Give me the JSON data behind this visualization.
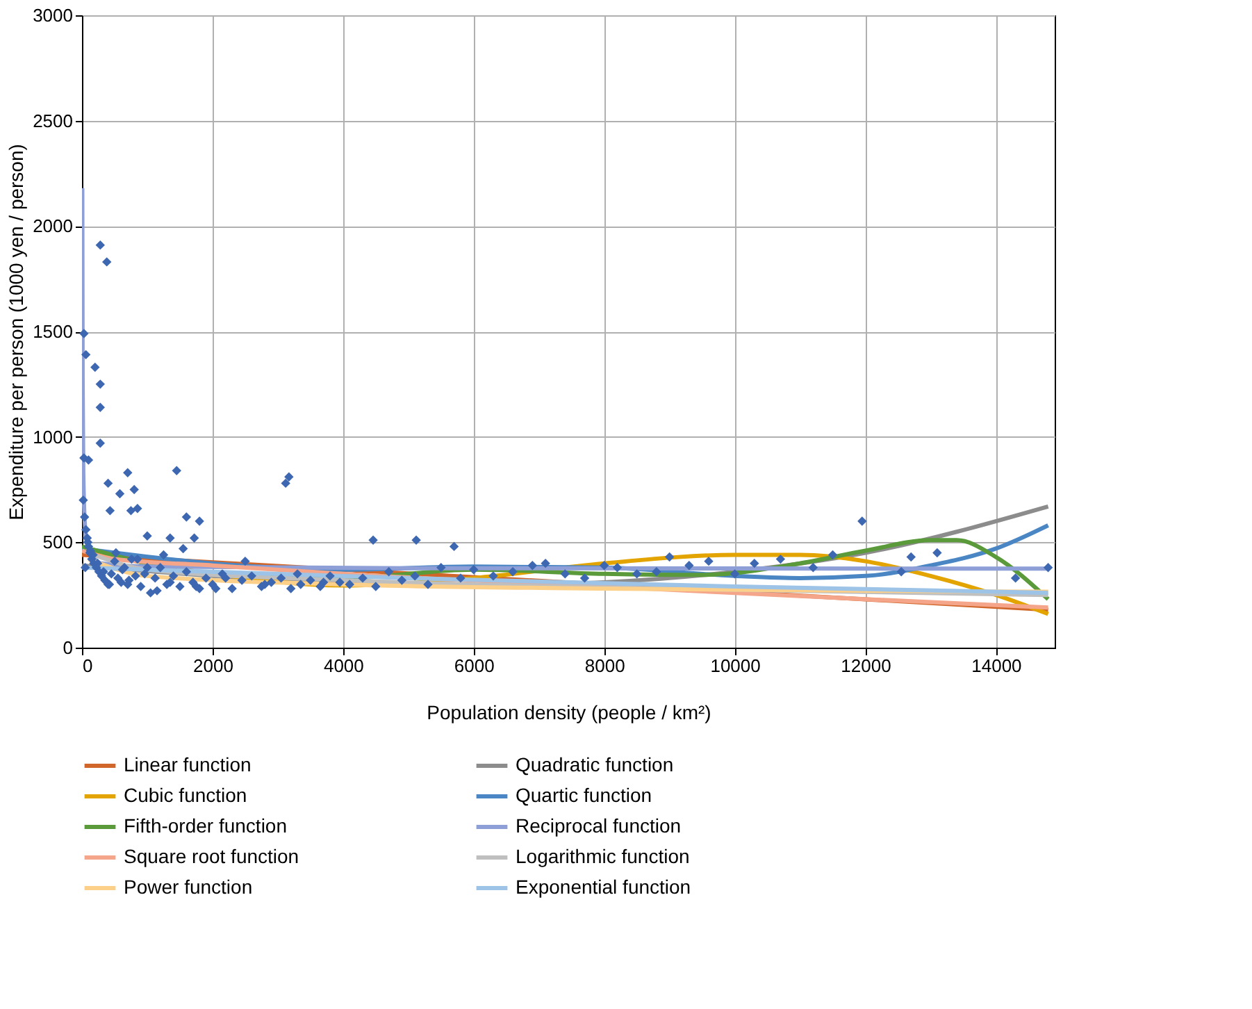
{
  "chart_data": {
    "type": "scatter",
    "xlabel": "Population density (people / km²)",
    "ylabel": "Expenditure per person (1000 yen / person)",
    "xlim": [
      0,
      14900
    ],
    "xticks": [
      0,
      2000,
      4000,
      6000,
      8000,
      10000,
      12000,
      14000
    ],
    "ylim": [
      0,
      3000
    ],
    "yticks": [
      0,
      500,
      1000,
      1500,
      2000,
      2500,
      3000
    ],
    "grid": true,
    "legend": "bottom",
    "series": [
      {
        "type": "line",
        "name": "Linear function",
        "color": "#d0662a",
        "x": [
          0,
          14800
        ],
        "values": [
          440,
          180
        ]
      },
      {
        "type": "line",
        "name": "Quadratic function",
        "color": "#8c8c8c",
        "x": [
          0,
          2000,
          4000,
          6000,
          8000,
          10000,
          12000,
          14800
        ],
        "values": [
          390,
          340,
          305,
          295,
          310,
          360,
          450,
          670
        ]
      },
      {
        "type": "line",
        "name": "Cubic function",
        "color": "#e3a400",
        "x": [
          0,
          2000,
          4000,
          6000,
          8000,
          10000,
          11000,
          12000,
          13000,
          14000,
          14800
        ],
        "values": [
          460,
          350,
          295,
          330,
          400,
          440,
          440,
          410,
          340,
          250,
          160
        ]
      },
      {
        "type": "line",
        "name": "Quartic function",
        "color": "#4a86c4",
        "x": [
          0,
          2000,
          4000,
          6000,
          8000,
          10000,
          11000,
          12000,
          13000,
          14000,
          14800
        ],
        "values": [
          470,
          400,
          370,
          385,
          380,
          340,
          330,
          340,
          390,
          470,
          580
        ]
      },
      {
        "type": "line",
        "name": "Fifth-order function",
        "color": "#5a9a3a",
        "x": [
          0,
          2000,
          4000,
          6000,
          8000,
          9500,
          11000,
          12000,
          13000,
          13400,
          14000,
          14800
        ],
        "values": [
          480,
          350,
          330,
          370,
          350,
          345,
          400,
          460,
          510,
          510,
          430,
          230
        ]
      },
      {
        "type": "line",
        "name": "Reciprocal function",
        "color": "#8d9fd6",
        "x": [
          5,
          10,
          20,
          50,
          100,
          300,
          1000,
          5000,
          14800
        ],
        "values": [
          2180,
          1280,
          830,
          560,
          470,
          400,
          385,
          377,
          375
        ]
      },
      {
        "type": "line",
        "name": "Square root function",
        "color": "#f4a58a",
        "x": [
          0,
          500,
          2000,
          4000,
          8000,
          12000,
          14800
        ],
        "values": [
          460,
          420,
          390,
          350,
          290,
          230,
          190
        ]
      },
      {
        "type": "line",
        "name": "Logarithmic function",
        "color": "#bfbfbf",
        "x": [
          100,
          1000,
          4000,
          8000,
          14800
        ],
        "values": [
          450,
          370,
          320,
          285,
          250
        ]
      },
      {
        "type": "line",
        "name": "Power function",
        "color": "#fdd08a",
        "x": [
          100,
          1000,
          4000,
          8000,
          14800
        ],
        "values": [
          420,
          340,
          300,
          280,
          265
        ]
      },
      {
        "type": "line",
        "name": "Exponential function",
        "color": "#9dc3e6",
        "x": [
          0,
          5000,
          10000,
          14800
        ],
        "values": [
          380,
          330,
          290,
          260
        ]
      },
      {
        "color": "#3d67b1",
        "marker": "diamond",
        "x": [
          280,
          380,
          30,
          60,
          200,
          280,
          280,
          280,
          30,
          100,
          400,
          580,
          800,
          700,
          430,
          750,
          850,
          1450,
          1600,
          1800,
          1720,
          1350,
          3120,
          3170,
          1000,
          4460,
          5120,
          5700,
          11950,
          13100,
          14800,
          14300,
          12550,
          20,
          40,
          60,
          80,
          100,
          120,
          150,
          180,
          220,
          260,
          300,
          350,
          400,
          450,
          500,
          550,
          600,
          650,
          700,
          760,
          820,
          900,
          960,
          1050,
          1120,
          1200,
          1300,
          1400,
          1500,
          1600,
          1700,
          1800,
          1900,
          2000,
          2150,
          2300,
          2450,
          2600,
          2750,
          2900,
          3050,
          3200,
          3350,
          3500,
          3650,
          3800,
          3950,
          4100,
          4300,
          4500,
          4700,
          4900,
          5100,
          5300,
          5500,
          5800,
          6000,
          6300,
          6600,
          6900,
          7100,
          7400,
          7700,
          8000,
          8200,
          8500,
          8800,
          9000,
          9300,
          9600,
          10000,
          10300,
          10700,
          11200,
          11500,
          12700,
          50,
          90,
          130,
          170,
          240,
          330,
          420,
          520,
          620,
          720,
          850,
          1000,
          1150,
          1250,
          1350,
          1550,
          1750,
          2050,
          2200,
          2500,
          2800,
          3300,
          3700
        ],
        "values": [
          1910,
          1830,
          1490,
          1390,
          1330,
          1250,
          1140,
          970,
          900,
          890,
          780,
          730,
          750,
          830,
          650,
          650,
          660,
          840,
          620,
          600,
          520,
          520,
          780,
          810,
          530,
          510,
          510,
          480,
          600,
          450,
          380,
          330,
          360,
          700,
          620,
          560,
          520,
          480,
          450,
          420,
          400,
          380,
          360,
          340,
          320,
          300,
          350,
          410,
          330,
          310,
          380,
          300,
          420,
          340,
          290,
          350,
          260,
          330,
          380,
          300,
          340,
          290,
          360,
          310,
          280,
          330,
          300,
          350,
          280,
          320,
          340,
          290,
          310,
          330,
          280,
          300,
          320,
          290,
          340,
          310,
          300,
          330,
          290,
          360,
          320,
          340,
          300,
          380,
          330,
          370,
          340,
          360,
          390,
          400,
          350,
          330,
          390,
          380,
          350,
          360,
          430,
          390,
          410,
          350,
          400,
          420,
          380,
          440,
          430,
          380,
          500,
          460,
          440,
          400,
          360,
          300,
          450,
          370,
          320,
          420,
          380,
          270,
          440,
          310,
          470,
          290,
          280,
          330,
          410,
          300,
          350,
          310
        ]
      }
    ]
  }
}
